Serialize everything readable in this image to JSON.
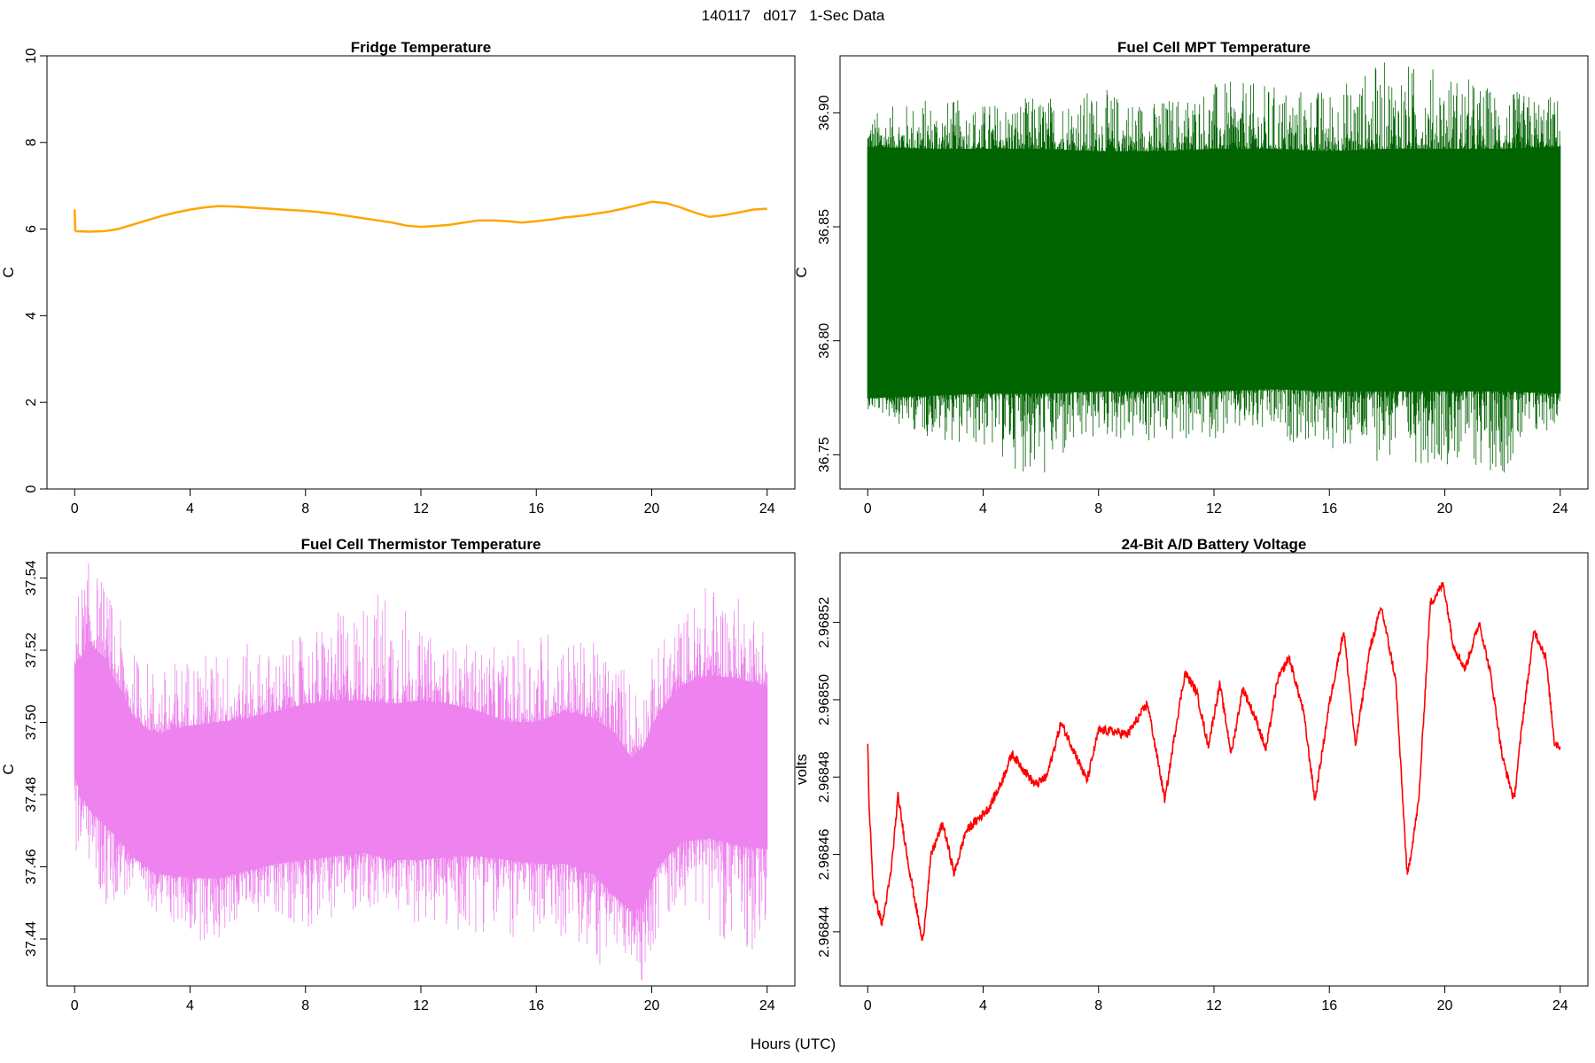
{
  "figure": {
    "title": "140117   d017   1-Sec Data",
    "xlabel": "Hours (UTC)"
  },
  "chart_data": [
    {
      "type": "line",
      "title": "Fridge Temperature",
      "ylabel": "C",
      "xlim": [
        0,
        24
      ],
      "ylim": [
        0,
        10
      ],
      "xticks": [
        0,
        4,
        8,
        12,
        16,
        20,
        24
      ],
      "yticks": [
        0,
        2,
        4,
        6,
        8,
        10
      ],
      "ytick_labels": [
        "0",
        "2",
        "4",
        "6",
        "8",
        "10"
      ],
      "color": "#FFA500",
      "render": "line",
      "x": [
        0,
        0.02,
        0.05,
        0.5,
        1.0,
        1.5,
        2.0,
        2.5,
        3.0,
        3.5,
        4.0,
        4.5,
        5.0,
        5.5,
        6.0,
        6.5,
        7.0,
        7.5,
        8.0,
        8.5,
        9.0,
        9.5,
        10.0,
        10.5,
        11.0,
        11.5,
        12.0,
        12.5,
        13.0,
        13.5,
        14.0,
        14.5,
        15.0,
        15.5,
        16.0,
        16.5,
        17.0,
        17.5,
        18.0,
        18.5,
        19.0,
        19.5,
        20.0,
        20.5,
        21.0,
        21.5,
        22.0,
        22.5,
        23.0,
        23.5,
        24.0
      ],
      "y": [
        6.45,
        5.97,
        5.95,
        5.94,
        5.95,
        6.0,
        6.1,
        6.2,
        6.3,
        6.38,
        6.45,
        6.5,
        6.53,
        6.52,
        6.5,
        6.48,
        6.46,
        6.44,
        6.42,
        6.39,
        6.35,
        6.3,
        6.25,
        6.2,
        6.15,
        6.08,
        6.05,
        6.07,
        6.1,
        6.15,
        6.2,
        6.2,
        6.18,
        6.15,
        6.18,
        6.22,
        6.27,
        6.3,
        6.35,
        6.4,
        6.47,
        6.55,
        6.63,
        6.6,
        6.5,
        6.38,
        6.28,
        6.32,
        6.38,
        6.45,
        6.47
      ]
    },
    {
      "type": "line",
      "title": "Fuel Cell MPT Temperature",
      "ylabel": "C",
      "xlim": [
        0,
        24
      ],
      "ylim": [
        36.735,
        36.925
      ],
      "xticks": [
        0,
        4,
        8,
        12,
        16,
        20,
        24
      ],
      "yticks": [
        36.75,
        36.8,
        36.85,
        36.9
      ],
      "ytick_labels": [
        "36.75",
        "36.80",
        "36.85",
        "36.90"
      ],
      "color": "#006400",
      "render": "band",
      "x": [
        0,
        2,
        4,
        6,
        8,
        10,
        12,
        14,
        16,
        18,
        20,
        22,
        24
      ],
      "y_low": [
        36.775,
        36.776,
        36.777,
        36.777,
        36.778,
        36.778,
        36.778,
        36.779,
        36.778,
        36.778,
        36.778,
        36.778,
        36.777
      ],
      "y_high": [
        36.885,
        36.884,
        36.884,
        36.884,
        36.883,
        36.883,
        36.884,
        36.884,
        36.883,
        36.884,
        36.884,
        36.884,
        36.885
      ],
      "y_min": [
        36.77,
        36.758,
        36.752,
        36.737,
        36.757,
        36.753,
        36.757,
        36.757,
        36.752,
        36.746,
        36.746,
        36.741,
        36.765
      ],
      "y_max": [
        36.9,
        36.907,
        36.905,
        36.908,
        36.911,
        36.906,
        36.914,
        36.913,
        36.911,
        36.924,
        36.92,
        36.91,
        36.908
      ]
    },
    {
      "type": "line",
      "title": "Fuel Cell Thermistor Temperature",
      "ylabel": "C",
      "xlim": [
        0,
        24
      ],
      "ylim": [
        37.427,
        37.547
      ],
      "xticks": [
        0,
        4,
        8,
        12,
        16,
        20,
        24
      ],
      "yticks": [
        37.44,
        37.46,
        37.48,
        37.5,
        37.52,
        37.54
      ],
      "ytick_labels": [
        "37.44",
        "37.46",
        "37.48",
        "37.50",
        "37.52",
        "37.54"
      ],
      "color": "#EE82EE",
      "render": "band",
      "x": [
        0,
        0.5,
        1,
        1.5,
        2,
        2.5,
        3,
        4,
        5,
        6,
        7,
        8,
        9,
        10,
        11,
        12,
        13,
        14,
        15,
        16,
        17,
        18,
        18.7,
        19.3,
        19.7,
        20.2,
        21,
        22,
        23,
        24
      ],
      "y_low": [
        37.485,
        37.476,
        37.472,
        37.468,
        37.463,
        37.46,
        37.458,
        37.457,
        37.457,
        37.459,
        37.461,
        37.462,
        37.463,
        37.464,
        37.462,
        37.462,
        37.463,
        37.463,
        37.462,
        37.461,
        37.461,
        37.458,
        37.452,
        37.448,
        37.449,
        37.46,
        37.467,
        37.468,
        37.466,
        37.465
      ],
      "y_high": [
        37.515,
        37.522,
        37.518,
        37.51,
        37.502,
        37.498,
        37.497,
        37.499,
        37.5,
        37.501,
        37.503,
        37.505,
        37.506,
        37.506,
        37.505,
        37.506,
        37.505,
        37.503,
        37.5,
        37.5,
        37.503,
        37.501,
        37.497,
        37.49,
        37.493,
        37.502,
        37.51,
        37.513,
        37.512,
        37.51
      ],
      "y_min": [
        37.462,
        37.46,
        37.445,
        37.452,
        37.45,
        37.45,
        37.446,
        37.44,
        37.438,
        37.448,
        37.446,
        37.443,
        37.446,
        37.448,
        37.446,
        37.444,
        37.44,
        37.442,
        37.44,
        37.438,
        37.44,
        37.431,
        37.435,
        37.432,
        37.428,
        37.44,
        37.45,
        37.445,
        37.433,
        37.44
      ],
      "y_max": [
        37.535,
        37.545,
        37.54,
        37.53,
        37.52,
        37.518,
        37.515,
        37.52,
        37.52,
        37.522,
        37.52,
        37.525,
        37.53,
        37.535,
        37.54,
        37.525,
        37.522,
        37.522,
        37.52,
        37.528,
        37.525,
        37.522,
        37.52,
        37.515,
        37.512,
        37.522,
        37.53,
        37.54,
        37.535,
        37.53
      ]
    },
    {
      "type": "line",
      "title": "24-Bit A/D Battery Voltage",
      "ylabel": "volts",
      "xlim": [
        0,
        24
      ],
      "ylim": [
        2.968426,
        2.968538
      ],
      "xticks": [
        0,
        4,
        8,
        12,
        16,
        20,
        24
      ],
      "yticks": [
        2.96844,
        2.96846,
        2.96848,
        2.9685,
        2.96852
      ],
      "ytick_labels": [
        "2.96844",
        "2.96846",
        "2.96848",
        "2.96850",
        "2.96852"
      ],
      "color": "#FF0000",
      "render": "noisyline",
      "noise": 1.2e-06,
      "x": [
        0,
        0.05,
        0.2,
        0.5,
        0.8,
        1.05,
        1.4,
        1.9,
        2.2,
        2.6,
        3.0,
        3.4,
        3.8,
        4.2,
        4.6,
        5.0,
        5.4,
        5.8,
        6.2,
        6.7,
        7.2,
        7.6,
        8.0,
        8.4,
        9.0,
        9.7,
        10.3,
        10.7,
        11.0,
        11.4,
        11.8,
        12.2,
        12.6,
        13.0,
        13.5,
        13.8,
        14.2,
        14.6,
        15.1,
        15.5,
        16.0,
        16.5,
        16.9,
        17.4,
        17.8,
        18.3,
        18.7,
        19.1,
        19.5,
        19.95,
        20.3,
        20.7,
        21.2,
        21.6,
        22.0,
        22.4,
        22.7,
        23.1,
        23.5,
        23.8,
        24.0
      ],
      "y": [
        2.968488,
        2.968472,
        2.96845,
        2.968442,
        2.968455,
        2.968475,
        2.968458,
        2.968437,
        2.96846,
        2.968468,
        2.968455,
        2.968466,
        2.968469,
        2.968472,
        2.968478,
        2.968486,
        2.968482,
        2.968478,
        2.96848,
        2.968494,
        2.968486,
        2.968479,
        2.968492,
        2.968492,
        2.968491,
        2.968499,
        2.968474,
        2.968494,
        2.968507,
        2.968502,
        2.968488,
        2.968504,
        2.968486,
        2.968503,
        2.968494,
        2.968487,
        2.968505,
        2.968511,
        2.968497,
        2.968474,
        2.968499,
        2.968518,
        2.968488,
        2.968513,
        2.968524,
        2.968505,
        2.968454,
        2.968474,
        2.968525,
        2.96853,
        2.968514,
        2.968508,
        2.96852,
        2.968506,
        2.968485,
        2.968474,
        2.968495,
        2.968518,
        2.968511,
        2.968489,
        2.968488
      ]
    }
  ]
}
